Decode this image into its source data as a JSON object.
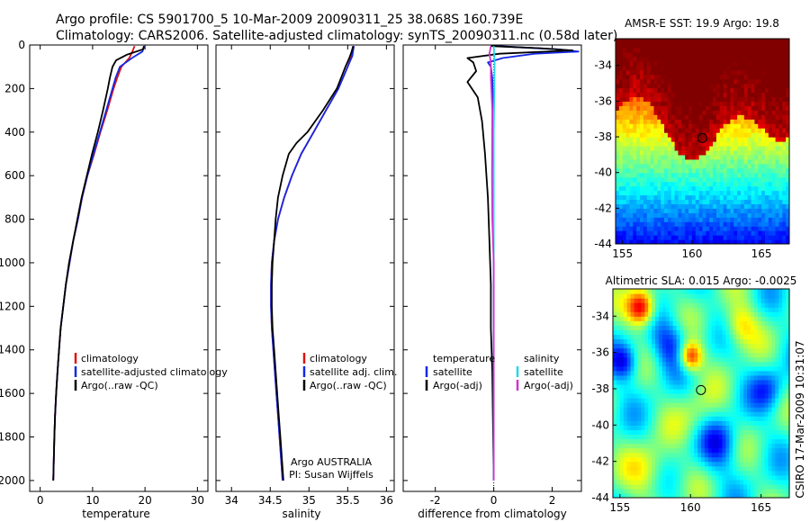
{
  "header": {
    "line1": "Argo profile: CS 5901700_5 10-Mar-2009 20090311_25 38.068S 160.739E",
    "line2": "Climatology: CARS2006. Satellite-adjusted climatology: synTS_20090311.nc (0.58d later)"
  },
  "colors": {
    "clim": "#e01010",
    "sat": "#1428e6",
    "argo": "#000000",
    "sat_sal": "#22d8e8",
    "argo_sal": "#d232d2"
  },
  "chart_data": [
    {
      "id": "temperature",
      "type": "line",
      "xlabel": "temperature",
      "xlim": [
        -2,
        32
      ],
      "ylim": [
        2050,
        0
      ],
      "xticks": [
        0,
        10,
        20,
        30
      ],
      "yticks": [
        0,
        200,
        400,
        600,
        800,
        1000,
        1200,
        1400,
        1600,
        1800,
        2000
      ],
      "legend": [
        "climatology",
        "satellite-adjusted climatology",
        "Argo(..raw -QC)"
      ],
      "series": [
        {
          "name": "climatology",
          "color": "#e01010",
          "points": [
            [
              18.0,
              5
            ],
            [
              17.6,
              30
            ],
            [
              17.0,
              60
            ],
            [
              15.5,
              100
            ],
            [
              14.7,
              150
            ],
            [
              14.0,
              200
            ],
            [
              12.8,
              300
            ],
            [
              11.5,
              400
            ],
            [
              10.3,
              500
            ],
            [
              9.0,
              600
            ],
            [
              8.0,
              700
            ],
            [
              7.2,
              800
            ],
            [
              6.3,
              900
            ],
            [
              5.6,
              1000
            ],
            [
              4.9,
              1100
            ],
            [
              4.4,
              1200
            ],
            [
              3.9,
              1300
            ],
            [
              3.6,
              1400
            ],
            [
              3.3,
              1500
            ],
            [
              3.05,
              1600
            ],
            [
              2.85,
              1700
            ],
            [
              2.7,
              1800
            ],
            [
              2.6,
              1900
            ],
            [
              2.5,
              2000
            ]
          ]
        },
        {
          "name": "satellite-adjusted climatology",
          "color": "#1428e6",
          "points": [
            [
              19.9,
              5
            ],
            [
              19.5,
              30
            ],
            [
              17.5,
              60
            ],
            [
              15.2,
              100
            ],
            [
              14.4,
              150
            ],
            [
              13.8,
              200
            ],
            [
              12.6,
              300
            ],
            [
              11.4,
              400
            ],
            [
              10.2,
              500
            ],
            [
              9.0,
              600
            ],
            [
              8.0,
              700
            ],
            [
              7.2,
              800
            ],
            [
              6.3,
              900
            ],
            [
              5.6,
              1000
            ],
            [
              4.9,
              1100
            ],
            [
              4.4,
              1200
            ],
            [
              3.9,
              1300
            ],
            [
              3.6,
              1400
            ],
            [
              3.3,
              1500
            ],
            [
              3.05,
              1600
            ],
            [
              2.85,
              1700
            ],
            [
              2.7,
              1800
            ],
            [
              2.6,
              1900
            ],
            [
              2.5,
              2000
            ]
          ]
        },
        {
          "name": "Argo(..raw -QC)",
          "color": "#000000",
          "points": [
            [
              19.8,
              5
            ],
            [
              19.6,
              20
            ],
            [
              16.5,
              45
            ],
            [
              14.5,
              70
            ],
            [
              13.8,
              100
            ],
            [
              13.3,
              150
            ],
            [
              12.9,
              200
            ],
            [
              12.0,
              300
            ],
            [
              11.0,
              400
            ],
            [
              9.9,
              500
            ],
            [
              8.9,
              600
            ],
            [
              7.9,
              700
            ],
            [
              7.1,
              800
            ],
            [
              6.3,
              900
            ],
            [
              5.5,
              1000
            ],
            [
              4.9,
              1100
            ],
            [
              4.4,
              1200
            ],
            [
              3.9,
              1300
            ],
            [
              3.6,
              1400
            ],
            [
              3.3,
              1500
            ],
            [
              3.05,
              1600
            ],
            [
              2.85,
              1700
            ],
            [
              2.7,
              1800
            ],
            [
              2.6,
              1900
            ],
            [
              2.5,
              2000
            ]
          ]
        }
      ]
    },
    {
      "id": "salinity",
      "type": "line",
      "xlabel": "salinity",
      "xlim": [
        33.8,
        36.1
      ],
      "ylim": [
        2050,
        0
      ],
      "xticks": [
        34,
        34.5,
        35,
        35.5,
        36
      ],
      "legend": [
        "climatology",
        "satellite adj. clim.",
        "Argo(..raw -QC)"
      ],
      "annotation": [
        "Argo AUSTRALIA",
        "PI: Susan Wijffels"
      ],
      "series": [
        {
          "name": "climatology",
          "color": "#e01010",
          "points": [
            [
              35.58,
              5
            ],
            [
              35.55,
              50
            ],
            [
              35.5,
              100
            ],
            [
              35.38,
              200
            ],
            [
              35.22,
              300
            ],
            [
              35.06,
              400
            ],
            [
              34.9,
              500
            ],
            [
              34.78,
              600
            ],
            [
              34.68,
              700
            ],
            [
              34.6,
              800
            ],
            [
              34.55,
              900
            ],
            [
              34.52,
              1000
            ],
            [
              34.51,
              1100
            ],
            [
              34.51,
              1200
            ],
            [
              34.52,
              1300
            ],
            [
              34.54,
              1400
            ],
            [
              34.56,
              1500
            ],
            [
              34.58,
              1600
            ],
            [
              34.6,
              1700
            ],
            [
              34.62,
              1800
            ],
            [
              34.64,
              1900
            ],
            [
              34.66,
              2000
            ]
          ]
        },
        {
          "name": "satellite adj. clim.",
          "color": "#1428e6",
          "points": [
            [
              35.58,
              5
            ],
            [
              35.56,
              50
            ],
            [
              35.5,
              100
            ],
            [
              35.38,
              200
            ],
            [
              35.22,
              300
            ],
            [
              35.06,
              400
            ],
            [
              34.9,
              500
            ],
            [
              34.78,
              600
            ],
            [
              34.68,
              700
            ],
            [
              34.6,
              800
            ],
            [
              34.55,
              900
            ],
            [
              34.52,
              1000
            ],
            [
              34.51,
              1100
            ],
            [
              34.51,
              1200
            ],
            [
              34.52,
              1300
            ],
            [
              34.54,
              1400
            ],
            [
              34.56,
              1500
            ],
            [
              34.58,
              1600
            ],
            [
              34.6,
              1700
            ],
            [
              34.62,
              1800
            ],
            [
              34.64,
              1900
            ],
            [
              34.66,
              2000
            ]
          ]
        },
        {
          "name": "Argo(..raw -QC)",
          "color": "#000000",
          "points": [
            [
              35.57,
              5
            ],
            [
              35.55,
              30
            ],
            [
              35.52,
              60
            ],
            [
              35.47,
              100
            ],
            [
              35.36,
              200
            ],
            [
              35.18,
              300
            ],
            [
              34.98,
              400
            ],
            [
              34.84,
              450
            ],
            [
              34.74,
              500
            ],
            [
              34.66,
              600
            ],
            [
              34.6,
              700
            ],
            [
              34.57,
              800
            ],
            [
              34.55,
              900
            ],
            [
              34.53,
              1000
            ],
            [
              34.52,
              1100
            ],
            [
              34.52,
              1200
            ],
            [
              34.53,
              1300
            ],
            [
              34.55,
              1400
            ],
            [
              34.57,
              1500
            ],
            [
              34.59,
              1600
            ],
            [
              34.61,
              1700
            ],
            [
              34.63,
              1800
            ],
            [
              34.65,
              1900
            ],
            [
              34.67,
              2000
            ]
          ]
        }
      ]
    },
    {
      "id": "difference",
      "type": "line",
      "xlabel": "difference from climatology",
      "xlim": [
        -3.1,
        3.0
      ],
      "ylim": [
        2050,
        0
      ],
      "xticks": [
        -2,
        0,
        2
      ],
      "legend_temp": [
        "temperature",
        "satellite",
        "Argo(-adj)"
      ],
      "legend_sal": [
        "salinity",
        "satellite",
        "Argo(-adj)"
      ],
      "series": [
        {
          "name": "temperature satellite",
          "color": "#1428e6",
          "points": [
            [
              0.1,
              5
            ],
            [
              2.2,
              20
            ],
            [
              2.9,
              30
            ],
            [
              1.4,
              40
            ],
            [
              0.3,
              60
            ],
            [
              -0.2,
              80
            ],
            [
              -0.1,
              100
            ],
            [
              -0.05,
              150
            ],
            [
              -0.02,
              300
            ],
            [
              0,
              600
            ],
            [
              0,
              2000
            ]
          ]
        },
        {
          "name": "temperature Argo(-adj)",
          "color": "#000000",
          "points": [
            [
              -0.1,
              5
            ],
            [
              1.6,
              15
            ],
            [
              2.7,
              25
            ],
            [
              0.2,
              40
            ],
            [
              -0.9,
              60
            ],
            [
              -0.7,
              80
            ],
            [
              -0.6,
              120
            ],
            [
              -0.9,
              170
            ],
            [
              -0.55,
              240
            ],
            [
              -0.4,
              350
            ],
            [
              -0.3,
              500
            ],
            [
              -0.2,
              700
            ],
            [
              -0.15,
              900
            ],
            [
              -0.1,
              1100
            ],
            [
              -0.1,
              1300
            ],
            [
              -0.05,
              1500
            ],
            [
              0,
              2000
            ]
          ]
        },
        {
          "name": "salinity satellite",
          "color": "#22d8e8",
          "points": [
            [
              0.0,
              5
            ],
            [
              0.03,
              80
            ],
            [
              0.02,
              200
            ],
            [
              0.0,
              400
            ],
            [
              0.0,
              2000
            ]
          ]
        },
        {
          "name": "salinity Argo(-adj)",
          "color": "#d232d2",
          "points": [
            [
              -0.1,
              5
            ],
            [
              -0.15,
              40
            ],
            [
              -0.1,
              80
            ],
            [
              -0.1,
              150
            ],
            [
              -0.05,
              300
            ],
            [
              -0.06,
              600
            ],
            [
              -0.05,
              800
            ],
            [
              0,
              1000
            ],
            [
              0,
              2000
            ]
          ]
        }
      ]
    },
    {
      "id": "sst_map",
      "type": "heatmap",
      "title": "AMSR-E SST: 19.9 Argo: 19.8",
      "xlim": [
        154.5,
        167
      ],
      "ylim": [
        -44,
        -32.5
      ],
      "xticks": [
        155,
        160,
        165
      ],
      "yticks": [
        -34,
        -36,
        -38,
        -40,
        -42,
        -44
      ],
      "marker": [
        160.739,
        -38.068
      ]
    },
    {
      "id": "sla_map",
      "type": "heatmap",
      "title": "Altimetric SLA: 0.015 Argo: -0.0025",
      "xlim": [
        154.5,
        167
      ],
      "ylim": [
        -44,
        -32.5
      ],
      "xticks": [
        155,
        160,
        165
      ],
      "yticks": [
        -34,
        -36,
        -38,
        -40,
        -42,
        -44
      ],
      "marker": [
        160.739,
        -38.068
      ]
    }
  ],
  "footer": {
    "timestamp": "CSIRO 17-Mar-2009 10:31:07"
  }
}
